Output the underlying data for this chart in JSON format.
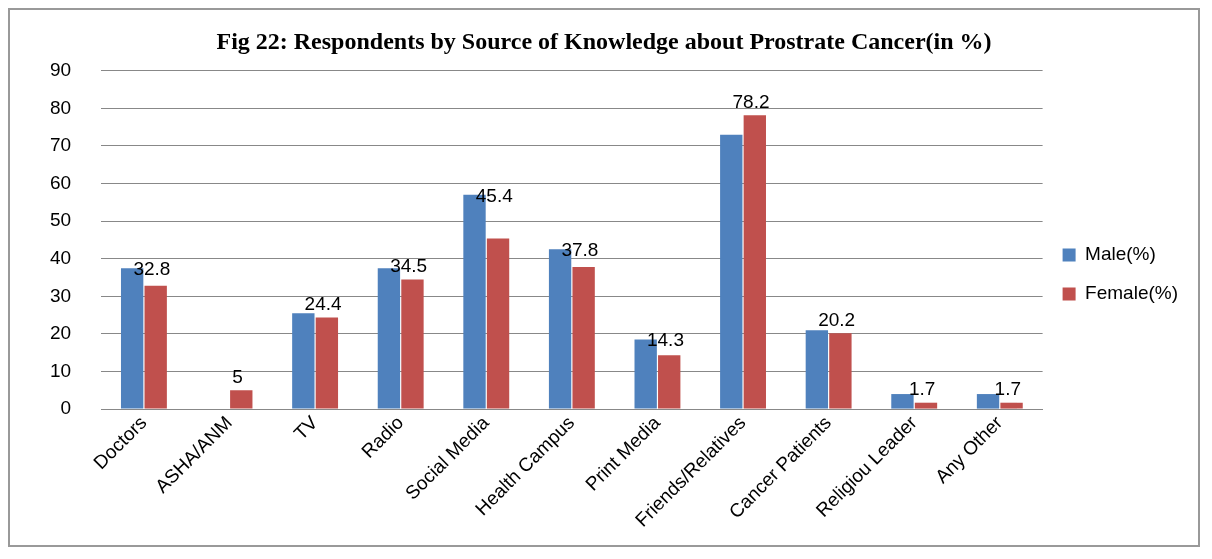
{
  "chart_data": {
    "type": "bar",
    "title": "Fig 22: Respondents by Source of Knowledge about Prostrate Cancer(in %)",
    "categories": [
      "Doctors",
      "ASHA/ANM",
      "TV",
      "Radio",
      "Social Media",
      "Health Campus",
      "Print Media",
      "Friends/Relatives",
      "Cancer Patients",
      "Religiou Leader",
      "Any Other"
    ],
    "series": [
      {
        "name": "Male(%)",
        "color": "#4f81bd",
        "values": [
          37.5,
          0,
          25.5,
          37.5,
          57,
          42.5,
          18.5,
          73,
          21,
          4,
          4
        ]
      },
      {
        "name": "Female(%)",
        "color": "#c0504d",
        "values": [
          32.8,
          5,
          24.4,
          34.5,
          45.4,
          37.8,
          14.3,
          78.2,
          20.2,
          1.7,
          1.7
        ],
        "value_labels": [
          "32.8",
          "5",
          "24.4",
          "34.5",
          "45.4",
          "37.8",
          "14.3",
          "78.2",
          "20.2",
          "1.7",
          "1.7"
        ]
      }
    ],
    "ylim": [
      0,
      90
    ],
    "yticks": [
      0,
      10,
      20,
      30,
      40,
      50,
      60,
      70,
      80,
      90
    ],
    "grid": "y",
    "legend": "right"
  }
}
